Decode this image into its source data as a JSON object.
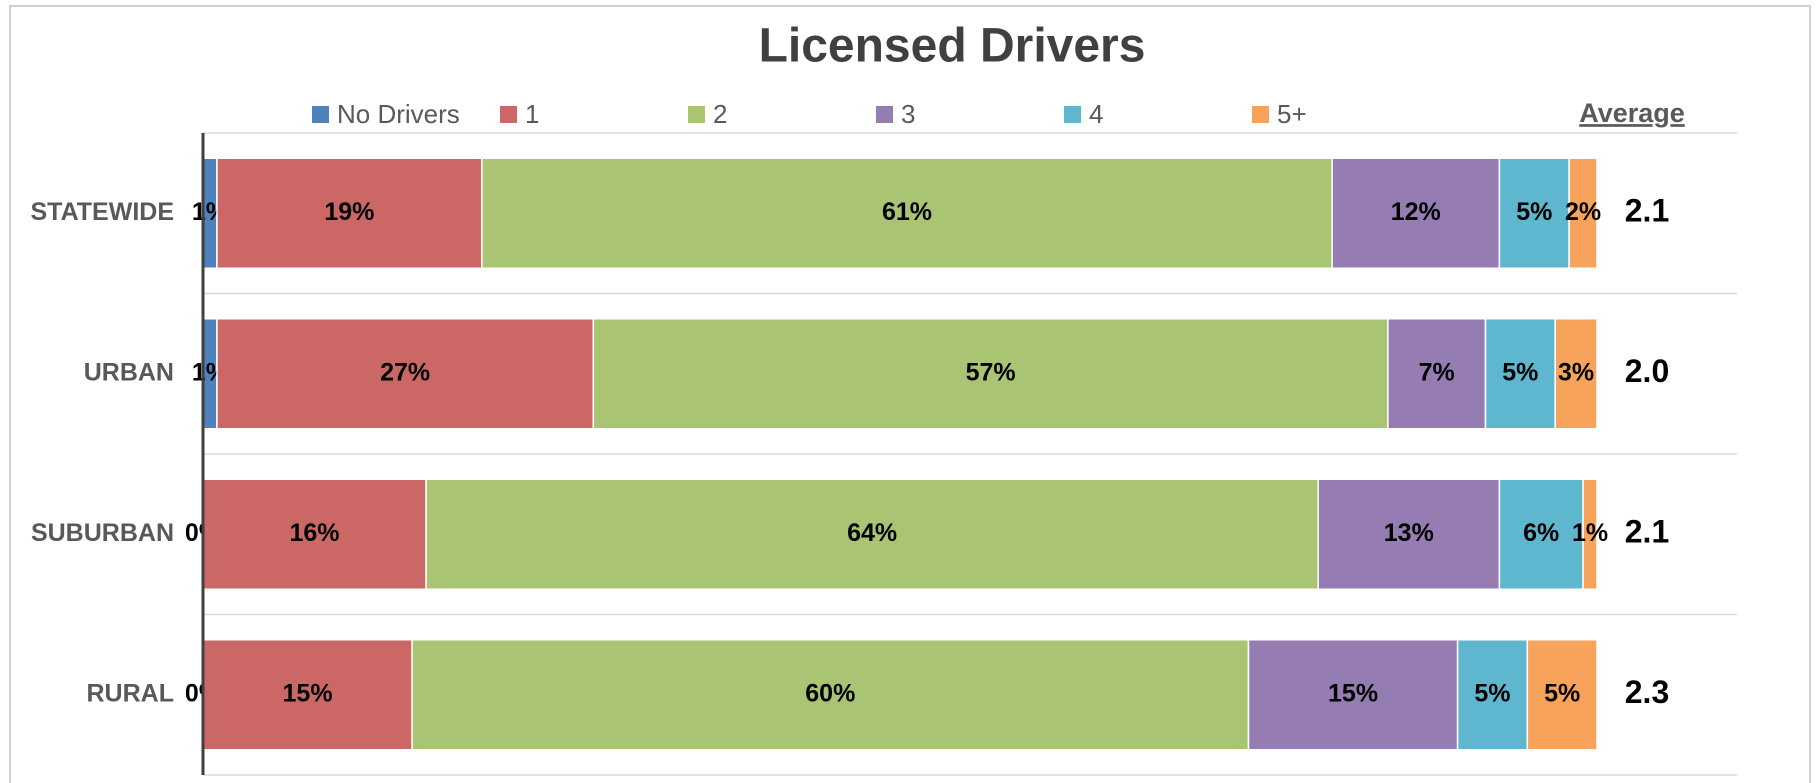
{
  "chart_data": {
    "type": "stacked_bar_horizontal",
    "title": "Licensed Drivers",
    "categories": [
      "STATEWIDE",
      "URBAN",
      "SUBURBAN",
      "RURAL"
    ],
    "xlim": [
      0,
      100
    ],
    "series": [
      {
        "name": "No Drivers",
        "color": "#4f81bd",
        "values": [
          1,
          1,
          0,
          0
        ],
        "value_labels": [
          "1%",
          "1%",
          "0%",
          "0%"
        ]
      },
      {
        "name": "1",
        "color": "#cb6866",
        "values": [
          19,
          27,
          16,
          15
        ],
        "value_labels": [
          "19%",
          "27%",
          "16%",
          "15%"
        ]
      },
      {
        "name": "2",
        "color": "#a9c574",
        "values": [
          61,
          57,
          64,
          60
        ],
        "value_labels": [
          "61%",
          "57%",
          "64%",
          "60%"
        ]
      },
      {
        "name": "3",
        "color": "#957db4",
        "values": [
          12,
          7,
          13,
          15
        ],
        "value_labels": [
          "12%",
          "7%",
          "13%",
          "15%"
        ]
      },
      {
        "name": "4",
        "color": "#5fb7cf",
        "values": [
          5,
          5,
          6,
          5
        ],
        "value_labels": [
          "5%",
          "5%",
          "6%",
          "5%"
        ]
      },
      {
        "name": "5+",
        "color": "#f7a35c",
        "values": [
          2,
          3,
          1,
          5
        ],
        "value_labels": [
          "2%",
          "3%",
          "1%",
          "5%"
        ]
      }
    ],
    "average": {
      "title": "Average",
      "values": [
        2.1,
        2.0,
        2.1,
        2.3
      ],
      "value_labels": [
        "2.1",
        "2.0",
        "2.1",
        "2.3"
      ]
    }
  }
}
